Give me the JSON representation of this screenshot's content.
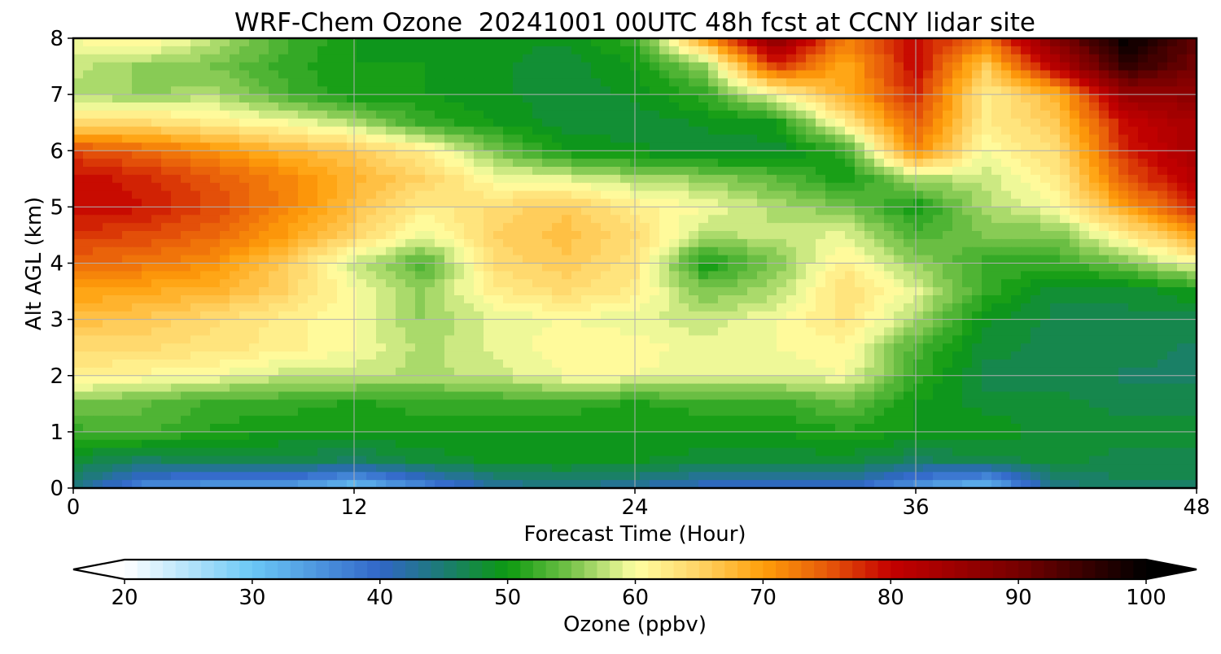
{
  "chart_data": {
    "type": "heatmap",
    "title": "WRF-Chem Ozone  20241001 00UTC 48h fcst at CCNY lidar site",
    "xlabel": "Forecast Time (Hour)",
    "ylabel": "Alt AGL (km)",
    "xlim": [
      0,
      48
    ],
    "ylim": [
      0,
      8
    ],
    "xticks": [
      0,
      12,
      24,
      36,
      48
    ],
    "yticks": [
      0,
      1,
      2,
      3,
      4,
      5,
      6,
      7,
      8
    ],
    "grid": true,
    "x": [
      0,
      3,
      6,
      9,
      12,
      15,
      18,
      21,
      24,
      27,
      30,
      33,
      36,
      39,
      42,
      45,
      48
    ],
    "y": [
      0,
      0.5,
      1,
      1.5,
      2,
      2.5,
      3,
      3.5,
      4,
      4.5,
      5,
      5.5,
      6,
      6.5,
      7,
      7.5,
      8
    ],
    "z": [
      [
        44,
        36,
        34,
        34,
        30,
        36,
        42,
        44,
        42,
        40,
        40,
        40,
        34,
        30,
        44,
        46,
        46
      ],
      [
        48,
        46,
        47,
        47,
        46,
        48,
        49,
        49,
        49,
        48,
        48,
        48,
        46,
        47,
        48,
        47,
        47
      ],
      [
        52,
        53,
        51,
        50,
        50,
        50,
        50,
        50,
        50,
        50,
        50,
        51,
        50,
        50,
        48,
        48,
        48
      ],
      [
        55,
        54,
        52,
        52,
        51,
        52,
        52,
        52,
        51,
        52,
        52,
        54,
        50,
        48,
        48,
        47,
        47
      ],
      [
        62,
        61,
        60,
        58,
        58,
        57,
        58,
        60,
        60,
        59,
        59,
        60,
        52,
        47,
        47,
        46,
        46
      ],
      [
        64,
        64,
        63,
        62,
        60,
        57,
        59,
        61,
        61,
        59,
        60,
        61,
        53,
        48,
        47,
        47,
        46
      ],
      [
        67,
        66,
        64,
        62,
        60,
        56,
        59,
        60,
        59,
        58,
        60,
        63,
        57,
        49,
        47,
        47,
        47
      ],
      [
        70,
        69,
        68,
        65,
        60,
        56,
        62,
        64,
        62,
        55,
        57,
        64,
        59,
        52,
        48,
        48,
        50
      ],
      [
        74,
        73,
        71,
        66,
        58,
        53,
        64,
        66,
        63,
        50,
        55,
        62,
        56,
        52,
        52,
        55,
        60
      ],
      [
        77,
        76,
        74,
        70,
        65,
        59,
        65,
        67,
        64,
        57,
        58,
        59,
        53,
        55,
        55,
        62,
        70
      ],
      [
        80,
        79,
        76,
        72,
        67,
        62,
        64,
        66,
        62,
        60,
        57,
        55,
        50,
        57,
        60,
        70,
        78
      ],
      [
        80,
        78,
        75,
        72,
        68,
        65,
        60,
        59,
        57,
        56,
        54,
        50,
        57,
        58,
        62,
        75,
        82
      ],
      [
        76,
        74,
        71,
        68,
        66,
        62,
        55,
        50,
        49,
        48,
        48,
        52,
        72,
        60,
        64,
        78,
        84
      ],
      [
        64,
        64,
        62,
        60,
        57,
        52,
        50,
        48,
        48,
        49,
        50,
        62,
        75,
        62,
        66,
        80,
        84
      ],
      [
        57,
        56,
        57,
        53,
        50,
        50,
        49,
        48,
        49,
        52,
        60,
        69,
        78,
        62,
        68,
        86,
        87
      ],
      [
        58,
        56,
        55,
        52,
        50,
        50,
        49,
        48,
        50,
        56,
        77,
        69,
        80,
        66,
        82,
        96,
        90
      ],
      [
        60,
        62,
        58,
        53,
        50,
        49,
        49,
        49,
        52,
        70,
        88,
        72,
        80,
        73,
        89,
        100,
        92
      ]
    ],
    "colorbar": {
      "label": "Ozone  (ppbv)",
      "min": 20,
      "max": 100,
      "ticks": [
        20,
        30,
        40,
        50,
        60,
        70,
        80,
        90,
        100
      ],
      "extend": "both",
      "stops": [
        {
          "v": 20,
          "color": "#ffffff"
        },
        {
          "v": 30,
          "color": "#6bc8f6"
        },
        {
          "v": 40,
          "color": "#3166c8"
        },
        {
          "v": 45,
          "color": "#1c7c72"
        },
        {
          "v": 50,
          "color": "#0c9a10"
        },
        {
          "v": 55,
          "color": "#77c34a"
        },
        {
          "v": 60,
          "color": "#ffffa3"
        },
        {
          "v": 65,
          "color": "#ffd466"
        },
        {
          "v": 70,
          "color": "#ff9f0a"
        },
        {
          "v": 75,
          "color": "#e75a0a"
        },
        {
          "v": 80,
          "color": "#c40000"
        },
        {
          "v": 90,
          "color": "#760000"
        },
        {
          "v": 100,
          "color": "#000000"
        }
      ]
    }
  }
}
